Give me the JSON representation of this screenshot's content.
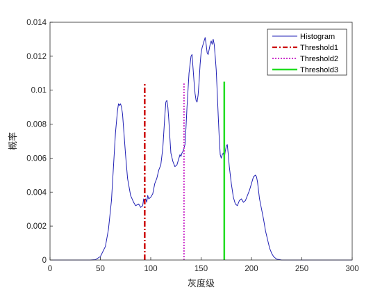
{
  "chart_data": {
    "type": "line",
    "title": "",
    "xlabel": "灰度级",
    "ylabel": "概率",
    "xlim": [
      0,
      300
    ],
    "ylim": [
      0,
      0.014
    ],
    "xticks": [
      "0",
      "50",
      "100",
      "150",
      "200",
      "250",
      "300"
    ],
    "yticks": [
      "0",
      "0.002",
      "0.004",
      "0.006",
      "0.008",
      "0.01",
      "0.012",
      "0.014"
    ],
    "grid": false,
    "legend_position": "top-right",
    "series": [
      {
        "name": "Histogram",
        "color": "#1f1fb4",
        "style": "solid",
        "x": [
          0,
          40,
          45,
          50,
          55,
          58,
          61,
          63,
          65,
          67,
          68,
          69,
          70,
          71,
          72,
          73,
          75,
          77,
          80,
          83,
          85,
          88,
          90,
          92,
          93,
          94,
          95,
          96,
          97,
          98,
          100,
          102,
          104,
          106,
          108,
          110,
          112,
          114,
          115,
          116,
          117,
          118,
          119,
          120,
          122,
          124,
          126,
          128,
          129,
          130,
          131,
          132,
          133,
          134,
          135,
          136,
          138,
          140,
          141,
          142,
          143,
          144,
          145,
          146,
          147,
          148,
          149,
          150,
          151,
          152,
          153,
          154,
          155,
          156,
          157,
          158,
          159,
          160,
          161,
          162,
          163,
          164,
          165,
          166,
          167,
          168,
          169,
          170,
          171,
          172,
          173,
          174,
          175,
          176,
          177,
          178,
          180,
          182,
          184,
          186,
          188,
          190,
          192,
          194,
          196,
          198,
          200,
          202,
          204,
          205,
          206,
          208,
          210,
          212,
          214,
          216,
          218,
          220,
          222,
          225,
          230,
          300
        ],
        "y": [
          0,
          0,
          2e-05,
          0.0002,
          0.0008,
          0.0018,
          0.0035,
          0.0055,
          0.0075,
          0.0088,
          0.0092,
          0.0091,
          0.0092,
          0.009,
          0.0086,
          0.0078,
          0.0062,
          0.0048,
          0.0038,
          0.0034,
          0.0032,
          0.0033,
          0.0031,
          0.0032,
          0.0036,
          0.0035,
          0.0036,
          0.0034,
          0.0038,
          0.0036,
          0.0037,
          0.0039,
          0.0045,
          0.0048,
          0.0053,
          0.0056,
          0.0066,
          0.0085,
          0.0093,
          0.0094,
          0.009,
          0.0082,
          0.0072,
          0.0063,
          0.0058,
          0.0055,
          0.0056,
          0.006,
          0.0062,
          0.0061,
          0.0063,
          0.0064,
          0.0066,
          0.0068,
          0.0078,
          0.009,
          0.011,
          0.012,
          0.0121,
          0.0113,
          0.0105,
          0.0098,
          0.0094,
          0.0093,
          0.0097,
          0.0105,
          0.0115,
          0.0122,
          0.0125,
          0.0127,
          0.0129,
          0.0131,
          0.0127,
          0.0122,
          0.0121,
          0.0124,
          0.0127,
          0.0129,
          0.0127,
          0.013,
          0.0127,
          0.012,
          0.0112,
          0.0099,
          0.0085,
          0.0072,
          0.0062,
          0.006,
          0.0062,
          0.0063,
          0.006,
          0.0064,
          0.0067,
          0.0068,
          0.0062,
          0.0055,
          0.0045,
          0.0037,
          0.0033,
          0.0032,
          0.0035,
          0.0036,
          0.0034,
          0.0035,
          0.0038,
          0.0041,
          0.0045,
          0.0049,
          0.005,
          0.0049,
          0.0046,
          0.0036,
          0.003,
          0.0024,
          0.0017,
          0.0012,
          0.0007,
          0.0004,
          0.0002,
          5e-05,
          0,
          0
        ]
      },
      {
        "name": "Threshold1",
        "color": "#cc0000",
        "style": "dashdot",
        "x": [
          94,
          94
        ],
        "y": [
          0,
          0.0104
        ]
      },
      {
        "name": "Threshold2",
        "color": "#cc33cc",
        "style": "dotted",
        "x": [
          133,
          133
        ],
        "y": [
          0,
          0.0104
        ]
      },
      {
        "name": "Threshold3",
        "color": "#22dd22",
        "style": "solid",
        "x": [
          173,
          173
        ],
        "y": [
          0,
          0.0105
        ]
      }
    ]
  }
}
